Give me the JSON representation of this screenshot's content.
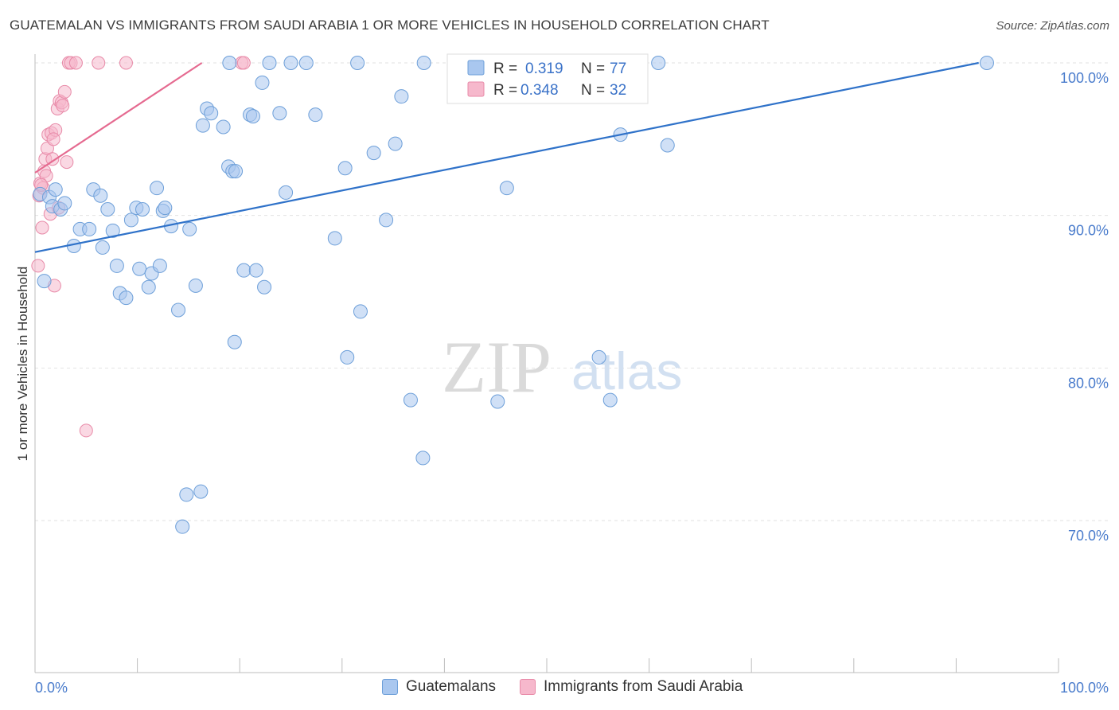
{
  "title": "GUATEMALAN VS IMMIGRANTS FROM SAUDI ARABIA 1 OR MORE VEHICLES IN HOUSEHOLD CORRELATION CHART",
  "source": "Source: ZipAtlas.com",
  "watermark": {
    "zip": "ZIP",
    "atlas": "atlas"
  },
  "colors": {
    "blue_fill": "#a9c7ef",
    "blue_stroke": "#6d9fd9",
    "blue_line": "#2f72c9",
    "pink_fill": "#f6b8cc",
    "pink_stroke": "#e88aa8",
    "pink_line": "#e56a90",
    "tick_label": "#4a7ccc",
    "grid": "#e2e2e2"
  },
  "legend_box": {
    "rows": [
      {
        "r_label": "R =",
        "r_value": "0.319",
        "n_label": "N =",
        "n_value": "77"
      },
      {
        "r_label": "R =",
        "r_value": "0.348",
        "n_label": "N =",
        "n_value": "32"
      }
    ]
  },
  "chart_data": {
    "type": "scatter",
    "title": "GUATEMALAN VS IMMIGRANTS FROM SAUDI ARABIA 1 OR MORE VEHICLES IN HOUSEHOLD CORRELATION CHART",
    "xlabel": "",
    "ylabel": "1 or more Vehicles in Household",
    "xlim": [
      0,
      100
    ],
    "ylim": [
      60,
      101.5
    ],
    "x_tick_labels": [
      "0.0%",
      "100.0%"
    ],
    "y_ticks": [
      70,
      80,
      90,
      100
    ],
    "y_tick_labels": [
      "70.0%",
      "80.0%",
      "90.0%",
      "100.0%"
    ],
    "grid": true,
    "legend_position": "bottom",
    "series": [
      {
        "name": "Guatemalans",
        "color": "#a9c7ef",
        "r": 0.319,
        "n": 77,
        "trend": {
          "x": [
            0,
            92.2
          ],
          "y": [
            87.6,
            100
          ]
        },
        "points": [
          [
            0.5,
            91.4
          ],
          [
            0.9,
            85.7
          ],
          [
            1.4,
            91.2
          ],
          [
            1.7,
            90.6
          ],
          [
            2.0,
            91.7
          ],
          [
            2.5,
            90.4
          ],
          [
            2.9,
            90.8
          ],
          [
            3.8,
            88.0
          ],
          [
            4.4,
            89.1
          ],
          [
            5.3,
            89.1
          ],
          [
            5.7,
            91.7
          ],
          [
            6.4,
            91.3
          ],
          [
            6.6,
            87.9
          ],
          [
            7.1,
            90.4
          ],
          [
            7.6,
            89.0
          ],
          [
            8.0,
            86.7
          ],
          [
            8.3,
            84.9
          ],
          [
            8.9,
            84.6
          ],
          [
            9.4,
            89.7
          ],
          [
            9.9,
            90.5
          ],
          [
            10.2,
            86.5
          ],
          [
            10.5,
            90.4
          ],
          [
            11.1,
            85.3
          ],
          [
            11.4,
            86.2
          ],
          [
            11.9,
            91.8
          ],
          [
            12.2,
            86.7
          ],
          [
            12.5,
            90.3
          ],
          [
            12.7,
            90.5
          ],
          [
            13.3,
            89.3
          ],
          [
            14.0,
            83.8
          ],
          [
            15.1,
            89.1
          ],
          [
            15.7,
            85.4
          ],
          [
            16.4,
            95.9
          ],
          [
            16.8,
            97.0
          ],
          [
            17.2,
            96.7
          ],
          [
            18.4,
            95.8
          ],
          [
            18.9,
            93.2
          ],
          [
            19.3,
            92.9
          ],
          [
            19.6,
            92.9
          ],
          [
            19.0,
            100.0
          ],
          [
            20.4,
            86.4
          ],
          [
            21.0,
            96.6
          ],
          [
            21.3,
            96.5
          ],
          [
            21.6,
            86.4
          ],
          [
            22.2,
            98.7
          ],
          [
            22.4,
            85.3
          ],
          [
            22.9,
            100.0
          ],
          [
            23.9,
            96.7
          ],
          [
            24.5,
            91.5
          ],
          [
            25.0,
            100.0
          ],
          [
            26.5,
            100.0
          ],
          [
            27.4,
            96.6
          ],
          [
            29.3,
            88.5
          ],
          [
            30.3,
            93.1
          ],
          [
            31.5,
            100.0
          ],
          [
            31.8,
            83.7
          ],
          [
            33.1,
            94.1
          ],
          [
            34.3,
            89.7
          ],
          [
            35.2,
            94.7
          ],
          [
            35.8,
            97.8
          ],
          [
            38.0,
            100.0
          ],
          [
            30.5,
            80.7
          ],
          [
            42.8,
            100.0
          ],
          [
            45.2,
            77.8
          ],
          [
            46.1,
            91.8
          ],
          [
            55.1,
            80.7
          ],
          [
            56.2,
            77.9
          ],
          [
            57.2,
            95.3
          ],
          [
            60.9,
            100.0
          ],
          [
            61.8,
            94.6
          ],
          [
            93.0,
            100.0
          ],
          [
            14.8,
            71.7
          ],
          [
            16.2,
            71.9
          ],
          [
            14.4,
            69.6
          ],
          [
            19.5,
            81.7
          ],
          [
            36.7,
            77.9
          ],
          [
            37.9,
            74.1
          ]
        ]
      },
      {
        "name": "Immigrants from Saudi Arabia",
        "color": "#f6b8cc",
        "r": 0.348,
        "n": 32,
        "trend": {
          "x": [
            0,
            16.3
          ],
          "y": [
            92.8,
            100
          ]
        },
        "points": [
          [
            0.3,
            86.7
          ],
          [
            0.4,
            91.3
          ],
          [
            0.5,
            92.1
          ],
          [
            0.7,
            89.2
          ],
          [
            0.8,
            91.8
          ],
          [
            0.9,
            92.9
          ],
          [
            1.0,
            93.7
          ],
          [
            1.2,
            94.4
          ],
          [
            1.3,
            95.3
          ],
          [
            1.5,
            90.1
          ],
          [
            1.6,
            95.4
          ],
          [
            1.7,
            93.7
          ],
          [
            1.9,
            85.4
          ],
          [
            2.0,
            95.6
          ],
          [
            2.2,
            97.0
          ],
          [
            2.4,
            97.5
          ],
          [
            2.6,
            97.4
          ],
          [
            2.7,
            97.2
          ],
          [
            2.9,
            98.1
          ],
          [
            3.1,
            93.5
          ],
          [
            3.3,
            100.0
          ],
          [
            3.5,
            100.0
          ],
          [
            4.0,
            100.0
          ],
          [
            6.2,
            100.0
          ],
          [
            8.9,
            100.0
          ],
          [
            20.2,
            100.0
          ],
          [
            20.4,
            100.0
          ],
          [
            5.0,
            75.9
          ],
          [
            1.1,
            92.6
          ],
          [
            0.6,
            92.0
          ],
          [
            2.3,
            90.5
          ],
          [
            1.8,
            95.0
          ]
        ]
      }
    ]
  }
}
